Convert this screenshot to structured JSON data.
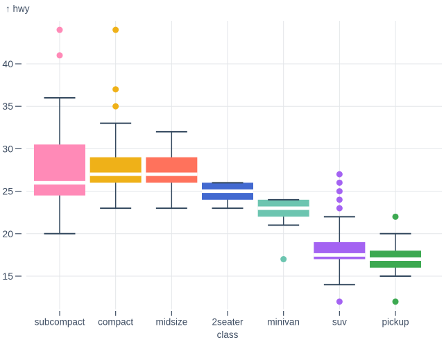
{
  "chart_data": {
    "type": "boxplot",
    "title": "",
    "x_label": "class",
    "y_label": "↑ hwy",
    "y_ticks": [
      15,
      20,
      25,
      30,
      35,
      40
    ],
    "y_domain": [
      11,
      45
    ],
    "grid": true,
    "legend": "none",
    "categories": [
      "subcompact",
      "compact",
      "midsize",
      "2seater",
      "minivan",
      "suv",
      "pickup"
    ],
    "series": [
      {
        "class": "subcompact",
        "color": "#ff8ab7",
        "whisker_low": 20,
        "q1": 24.5,
        "median": 26,
        "q3": 30.5,
        "whisker_high": 36,
        "outliers": [
          41,
          44
        ]
      },
      {
        "class": "compact",
        "color": "#efb118",
        "whisker_low": 23,
        "q1": 26,
        "median": 27,
        "q3": 29,
        "whisker_high": 33,
        "outliers": [
          35,
          37,
          44
        ]
      },
      {
        "class": "midsize",
        "color": "#ff725c",
        "whisker_low": 23,
        "q1": 26,
        "median": 27,
        "q3": 29,
        "whisker_high": 32,
        "outliers": []
      },
      {
        "class": "2seater",
        "color": "#4269d0",
        "whisker_low": 23,
        "q1": 24,
        "median": 25,
        "q3": 26,
        "whisker_high": 26,
        "outliers": []
      },
      {
        "class": "minivan",
        "color": "#6cc5b0",
        "whisker_low": 21,
        "q1": 22,
        "median": 23,
        "q3": 24,
        "whisker_high": 24,
        "outliers": [
          17
        ]
      },
      {
        "class": "suv",
        "color": "#a463f2",
        "whisker_low": 14,
        "q1": 17,
        "median": 17.5,
        "q3": 19,
        "whisker_high": 22,
        "outliers": [
          23,
          24,
          25,
          26,
          27,
          12
        ]
      },
      {
        "class": "pickup",
        "color": "#3ca951",
        "whisker_low": 15,
        "q1": 16,
        "median": 17,
        "q3": 18,
        "whisker_high": 20,
        "outliers": [
          22,
          12
        ]
      }
    ],
    "colors": {
      "axis_text": "#3f4e63",
      "whisker_rule": "#33485e",
      "gridline": "#e3e6e9",
      "median_line": "#ffffff",
      "background": "#ffffff"
    }
  }
}
